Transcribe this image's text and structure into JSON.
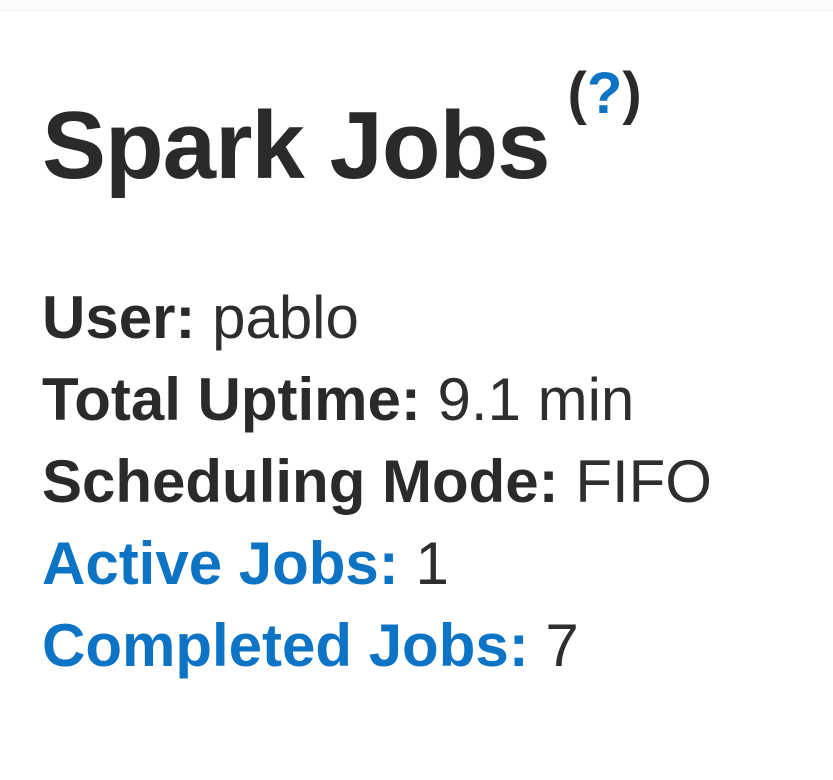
{
  "page": {
    "title": "Spark Jobs",
    "help": {
      "open_paren": "(",
      "question_mark": "?",
      "close_paren": ")"
    }
  },
  "summary": {
    "items": [
      {
        "label": "User:",
        "value": "pablo",
        "is_link": false
      },
      {
        "label": "Total Uptime:",
        "value": "9.1 min",
        "is_link": false
      },
      {
        "label": "Scheduling Mode:",
        "value": "FIFO",
        "is_link": false
      },
      {
        "label": "Active Jobs:",
        "value": "1",
        "is_link": true
      },
      {
        "label": "Completed Jobs:",
        "value": "7",
        "is_link": true
      }
    ]
  },
  "colors": {
    "link_blue": "#0d73c4",
    "text_dark": "#2a2a2a",
    "background": "#ffffff"
  }
}
